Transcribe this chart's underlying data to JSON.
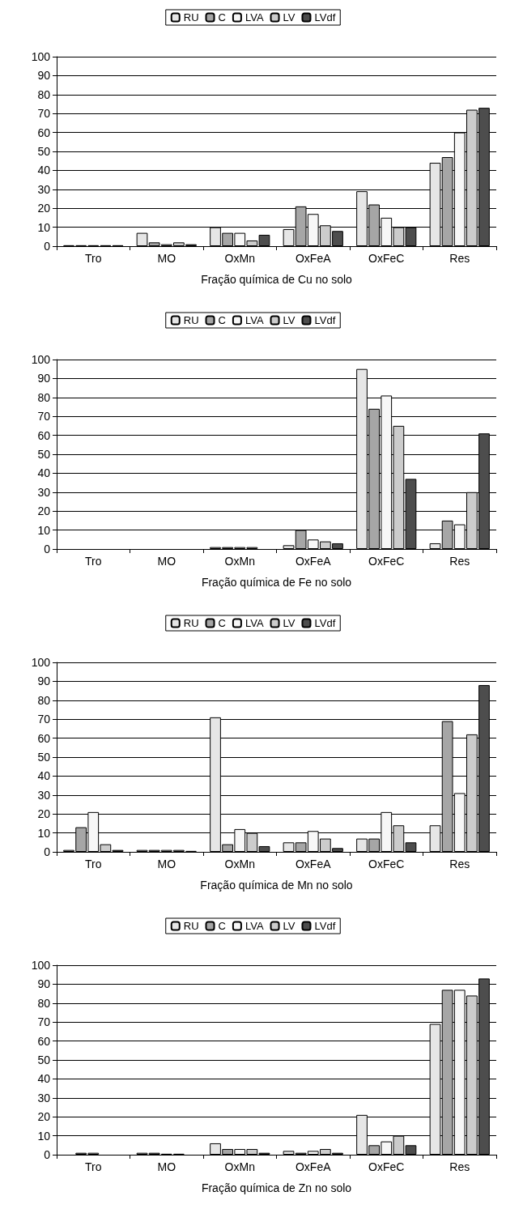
{
  "chart_data": [
    {
      "type": "bar",
      "xlabel": "Fração química de Cu no solo",
      "categories": [
        "Tro",
        "MO",
        "OxMn",
        "OxFeA",
        "OxFeC",
        "Res"
      ],
      "ylim": [
        0,
        100
      ],
      "yticks": [
        0,
        10,
        20,
        30,
        40,
        50,
        60,
        70,
        80,
        90,
        100
      ],
      "grid": "y",
      "legend": "top",
      "series": [
        {
          "name": "RU",
          "color": "#e6e6e6",
          "values": [
            0.5,
            7,
            10,
            9,
            29,
            44
          ]
        },
        {
          "name": "C",
          "color": "#a6a6a6",
          "values": [
            0.5,
            2,
            7,
            21,
            22,
            47
          ]
        },
        {
          "name": "LVA",
          "color": "#f7f7f7",
          "values": [
            0.5,
            1,
            7,
            17,
            15,
            60
          ]
        },
        {
          "name": "LV",
          "color": "#cccccc",
          "values": [
            0.5,
            2,
            3,
            11,
            10,
            72
          ]
        },
        {
          "name": "LVdf",
          "color": "#4d4d4d",
          "values": [
            0.5,
            1,
            6,
            8,
            10,
            73
          ]
        }
      ]
    },
    {
      "type": "bar",
      "xlabel": "Fração química de Fe no solo",
      "categories": [
        "Tro",
        "MO",
        "OxMn",
        "OxFeA",
        "OxFeC",
        "Res"
      ],
      "ylim": [
        0,
        100
      ],
      "yticks": [
        0,
        10,
        20,
        30,
        40,
        50,
        60,
        70,
        80,
        90,
        100
      ],
      "grid": "y",
      "legend": "top",
      "series": [
        {
          "name": "RU",
          "color": "#e6e6e6",
          "values": [
            0,
            0,
            1,
            2,
            95,
            3
          ]
        },
        {
          "name": "C",
          "color": "#a6a6a6",
          "values": [
            0,
            0,
            1,
            10,
            74,
            15
          ]
        },
        {
          "name": "LVA",
          "color": "#f7f7f7",
          "values": [
            0,
            0,
            1,
            5,
            81,
            13
          ]
        },
        {
          "name": "LV",
          "color": "#cccccc",
          "values": [
            0,
            0,
            1,
            4,
            65,
            30
          ]
        },
        {
          "name": "LVdf",
          "color": "#4d4d4d",
          "values": [
            0,
            0,
            0,
            3,
            37,
            61
          ]
        }
      ]
    },
    {
      "type": "bar",
      "xlabel": "Fração química de Mn no solo",
      "categories": [
        "Tro",
        "MO",
        "OxMn",
        "OxFeA",
        "OxFeC",
        "Res"
      ],
      "ylim": [
        0,
        100
      ],
      "yticks": [
        0,
        10,
        20,
        30,
        40,
        50,
        60,
        70,
        80,
        90,
        100
      ],
      "grid": "y",
      "legend": "top",
      "series": [
        {
          "name": "RU",
          "color": "#e6e6e6",
          "values": [
            1,
            1,
            71,
            5,
            7,
            14
          ]
        },
        {
          "name": "C",
          "color": "#a6a6a6",
          "values": [
            13,
            1,
            4,
            5,
            7,
            69
          ]
        },
        {
          "name": "LVA",
          "color": "#f7f7f7",
          "values": [
            21,
            1,
            12,
            11,
            21,
            31
          ]
        },
        {
          "name": "LV",
          "color": "#cccccc",
          "values": [
            4,
            1,
            10,
            7,
            14,
            62
          ]
        },
        {
          "name": "LVdf",
          "color": "#4d4d4d",
          "values": [
            1,
            0.5,
            3,
            2,
            5,
            88
          ]
        }
      ]
    },
    {
      "type": "bar",
      "xlabel": "Fração química de Zn no solo",
      "categories": [
        "Tro",
        "MO",
        "OxMn",
        "OxFeA",
        "OxFeC",
        "Res"
      ],
      "ylim": [
        0,
        100
      ],
      "yticks": [
        0,
        10,
        20,
        30,
        40,
        50,
        60,
        70,
        80,
        90,
        100
      ],
      "grid": "y",
      "legend": "top",
      "series": [
        {
          "name": "RU",
          "color": "#e6e6e6",
          "values": [
            0,
            1,
            6,
            2,
            21,
            69
          ]
        },
        {
          "name": "C",
          "color": "#a6a6a6",
          "values": [
            1,
            1,
            3,
            1,
            5,
            87
          ]
        },
        {
          "name": "LVA",
          "color": "#f7f7f7",
          "values": [
            1,
            0.5,
            3,
            2,
            7,
            87
          ]
        },
        {
          "name": "LV",
          "color": "#cccccc",
          "values": [
            0,
            0.5,
            3,
            3,
            10,
            84
          ]
        },
        {
          "name": "LVdf",
          "color": "#4d4d4d",
          "values": [
            0,
            0,
            1,
            1,
            5,
            93
          ]
        }
      ]
    }
  ]
}
